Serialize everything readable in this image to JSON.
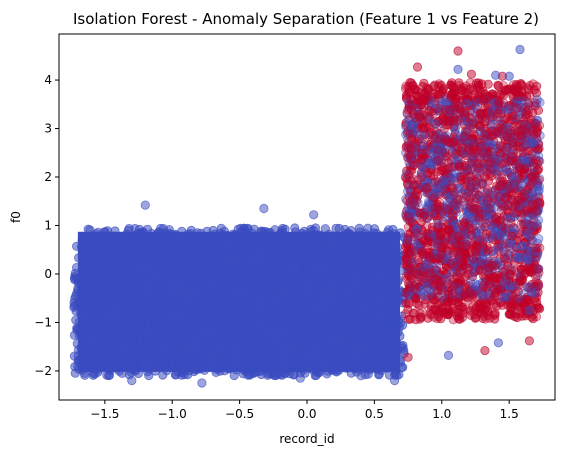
{
  "chart_data": {
    "type": "scatter",
    "title": "Isolation Forest - Anomaly Separation (Feature 1 vs Feature 2)",
    "xlabel": "record_id",
    "ylabel": "f0",
    "xlim": [
      -1.84,
      1.84
    ],
    "ylim": [
      -2.6,
      4.95
    ],
    "xticks": [
      -1.5,
      -1.0,
      -0.5,
      0.0,
      0.5,
      1.0,
      1.5
    ],
    "xtick_labels": [
      "−1.5",
      "−1.0",
      "−0.5",
      "0.0",
      "0.5",
      "1.0",
      "1.5"
    ],
    "yticks": [
      -2,
      -1,
      0,
      1,
      2,
      3,
      4
    ],
    "ytick_labels": [
      "−2",
      "−1",
      "0",
      "1",
      "2",
      "3",
      "4"
    ],
    "grid": false,
    "legend": "none",
    "colors": {
      "normal": "#3b4cc0",
      "anomaly": "#c00028"
    },
    "series": [
      {
        "group": "normal",
        "x_range": [
          -1.73,
          0.72
        ],
        "y_range": [
          -2.1,
          0.95
        ],
        "outliers": [
          [
            -1.2,
            1.42
          ],
          [
            -0.32,
            1.35
          ],
          [
            0.05,
            1.22
          ],
          [
            -0.78,
            -2.25
          ],
          [
            -1.3,
            -2.2
          ],
          [
            0.4,
            -2.1
          ],
          [
            0.65,
            -2.2
          ],
          [
            -1.65,
            -2.05
          ],
          [
            -0.05,
            -2.15
          ]
        ]
      },
      {
        "group": "anomaly",
        "x_range": [
          0.73,
          1.73
        ],
        "y_range": [
          -0.95,
          3.95
        ],
        "outliers": [
          [
            1.12,
            4.6
          ],
          [
            0.82,
            4.27
          ],
          [
            1.22,
            4.12
          ],
          [
            1.65,
            -1.38
          ],
          [
            1.32,
            -1.58
          ],
          [
            0.75,
            -1.72
          ],
          [
            1.45,
            4.08
          ]
        ]
      },
      {
        "group": "normal",
        "x_range": [
          0.73,
          1.73
        ],
        "y_range": [
          -0.5,
          3.6
        ],
        "outliers": [
          [
            1.58,
            4.63
          ],
          [
            1.12,
            4.22
          ],
          [
            1.4,
            4.1
          ],
          [
            1.5,
            4.08
          ],
          [
            1.05,
            -1.68
          ],
          [
            1.42,
            -1.42
          ],
          [
            1.65,
            -0.75
          ]
        ]
      }
    ]
  }
}
